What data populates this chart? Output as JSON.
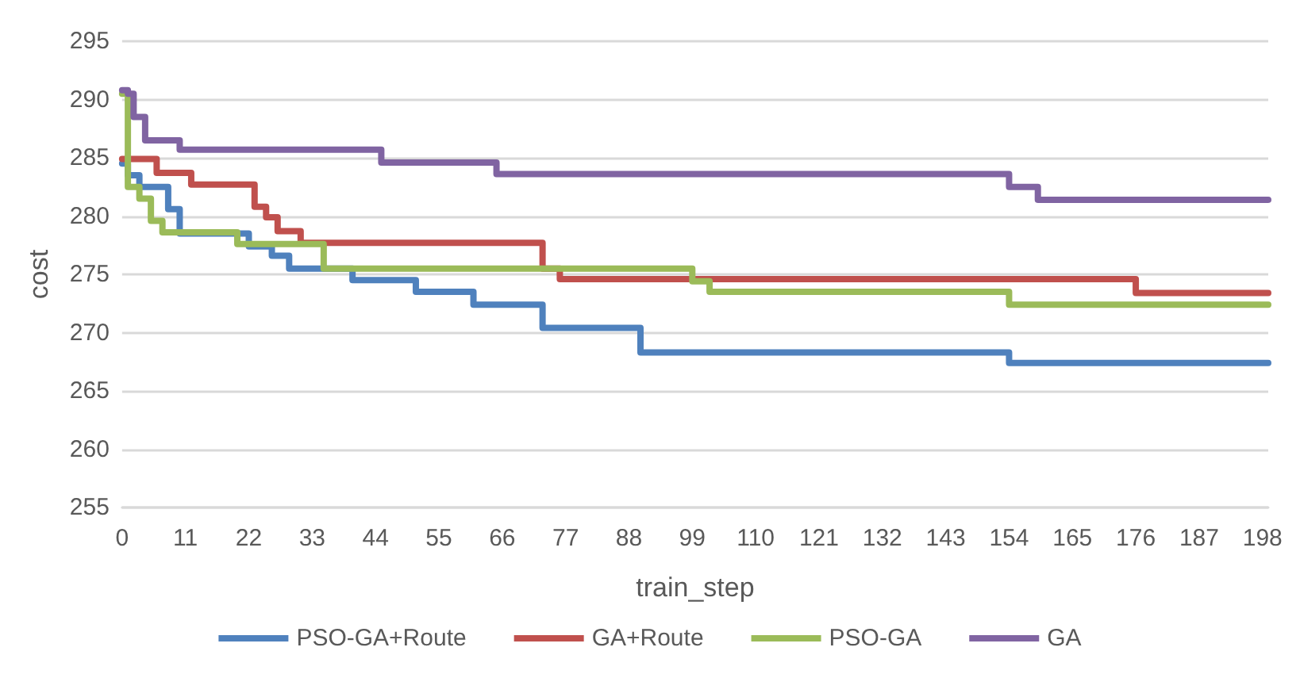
{
  "chart_data": {
    "type": "step",
    "xlabel": "train_step",
    "ylabel": "cost",
    "xlim": [
      0,
      199
    ],
    "xticks": [
      0,
      11,
      22,
      33,
      44,
      55,
      66,
      77,
      88,
      99,
      110,
      121,
      132,
      143,
      154,
      165,
      176,
      187,
      198
    ],
    "ylim": [
      255,
      295
    ],
    "yticks": [
      255,
      260,
      265,
      270,
      275,
      280,
      285,
      290,
      295
    ],
    "grid": "y",
    "legend": "bottom",
    "line_style": "solid",
    "marker": "none",
    "series": [
      {
        "name": "PSO-GA+Route",
        "color": "#4f81bd",
        "x": [
          0,
          1,
          3,
          8,
          10,
          22,
          26,
          29,
          40,
          51,
          61,
          73,
          90,
          154,
          199
        ],
        "values": [
          284.5,
          283.5,
          282.5,
          280.6,
          278.5,
          277.4,
          276.6,
          275.5,
          274.5,
          273.5,
          272.4,
          270.4,
          268.3,
          267.4,
          267.4
        ]
      },
      {
        "name": "GA+Route",
        "color": "#c0504d",
        "x": [
          0,
          6,
          12,
          23,
          25,
          27,
          31,
          73,
          76,
          176,
          199
        ],
        "values": [
          284.9,
          283.7,
          282.7,
          280.8,
          279.9,
          278.7,
          277.7,
          275.5,
          274.6,
          273.4,
          273.4
        ]
      },
      {
        "name": "PSO-GA",
        "color": "#9bbb59",
        "x": [
          0,
          1,
          3,
          5,
          7,
          20,
          35,
          99,
          102,
          154,
          199
        ],
        "values": [
          290.5,
          282.5,
          281.5,
          279.6,
          278.6,
          277.6,
          275.5,
          274.4,
          273.5,
          272.4,
          272.4
        ]
      },
      {
        "name": "GA",
        "color": "#8064a2",
        "x": [
          0,
          1,
          2,
          4,
          10,
          45,
          65,
          154,
          159,
          199
        ],
        "values": [
          290.8,
          290.5,
          288.5,
          286.5,
          285.7,
          284.6,
          283.6,
          282.5,
          281.4,
          281.4
        ]
      }
    ]
  }
}
